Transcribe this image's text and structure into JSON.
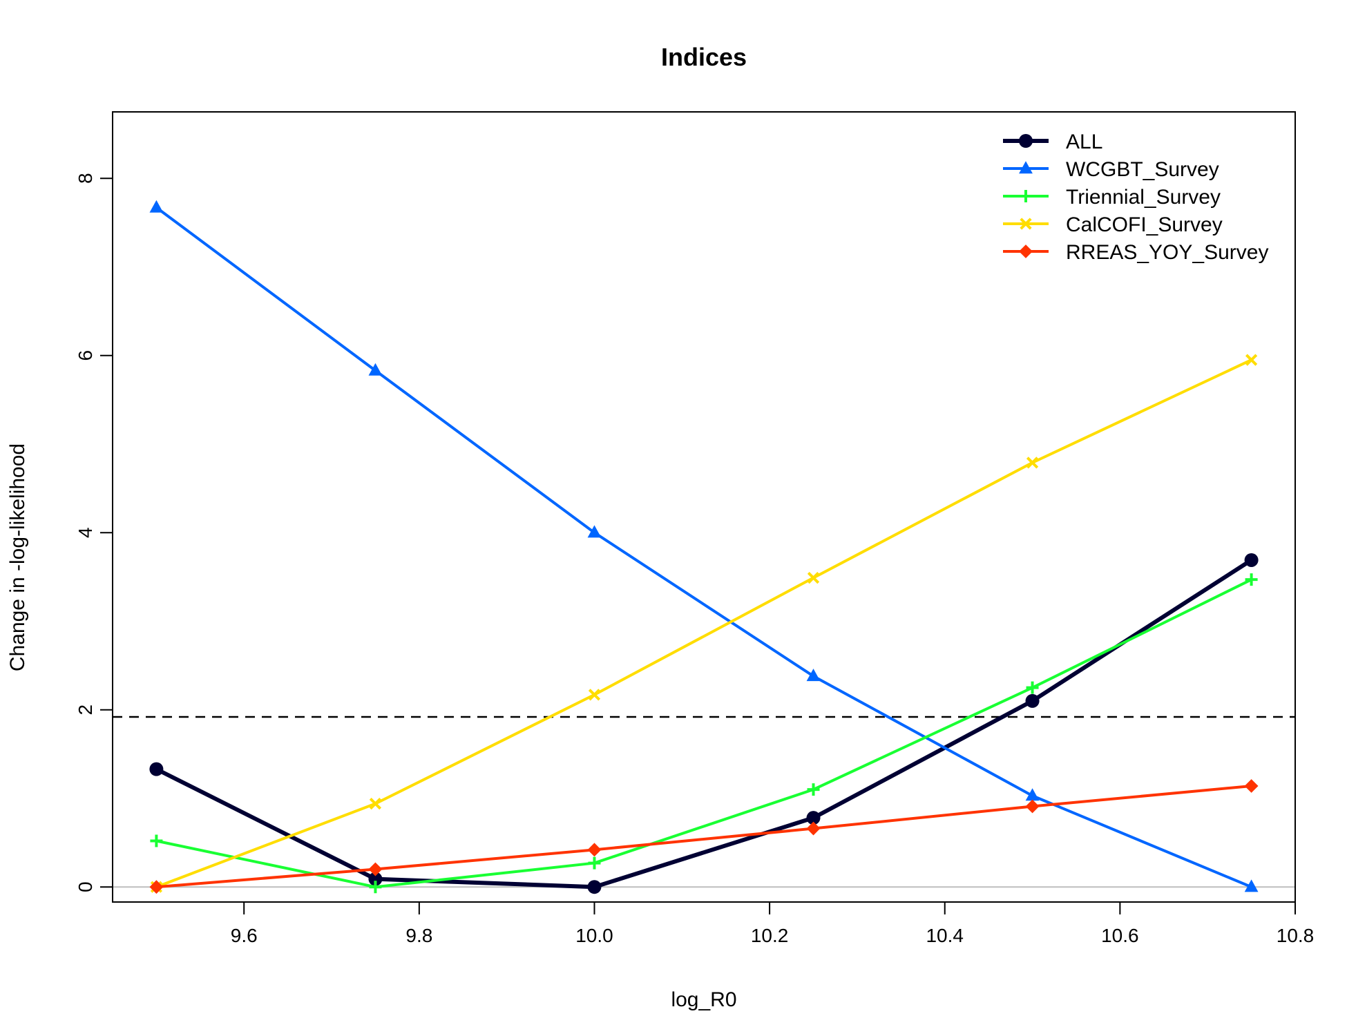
{
  "chart_data": {
    "type": "line",
    "title": "Indices",
    "xlabel": "log_R0",
    "ylabel": "Change in -log-likelihood",
    "xlim": [
      9.45,
      10.8
    ],
    "ylim": [
      -0.17,
      8.75
    ],
    "xticks": [
      "9.6",
      "9.8",
      "10.0",
      "10.2",
      "10.4",
      "10.6",
      "10.8"
    ],
    "yticks": [
      "0",
      "2",
      "4",
      "6",
      "8"
    ],
    "x": [
      9.5,
      9.75,
      10.0,
      10.25,
      10.5,
      10.75
    ],
    "reference_line": {
      "y": 1.92,
      "style": "dashed",
      "color": "#000000"
    },
    "zero_line": {
      "y": 0,
      "color": "#bebebe"
    },
    "legend_position": "top-right",
    "series": [
      {
        "name": "ALL",
        "color": "#000033",
        "marker": "circle",
        "values": [
          1.33,
          0.09,
          0.0,
          0.78,
          2.1,
          3.69
        ]
      },
      {
        "name": "WCGBT_Survey",
        "color": "#0066ff",
        "marker": "triangle",
        "values": [
          7.67,
          5.83,
          4.0,
          2.38,
          1.03,
          0.0
        ]
      },
      {
        "name": "Triennial_Survey",
        "color": "#19ff33",
        "marker": "plus",
        "values": [
          0.52,
          0.0,
          0.27,
          1.1,
          2.25,
          3.47
        ]
      },
      {
        "name": "CalCOFI_Survey",
        "color": "#ffdd00",
        "marker": "cross",
        "values": [
          0.0,
          0.94,
          2.17,
          3.49,
          4.79,
          5.95
        ]
      },
      {
        "name": "RREAS_YOY_Survey",
        "color": "#ff3300",
        "marker": "diamond",
        "values": [
          0.0,
          0.2,
          0.42,
          0.66,
          0.91,
          1.14
        ]
      }
    ]
  }
}
